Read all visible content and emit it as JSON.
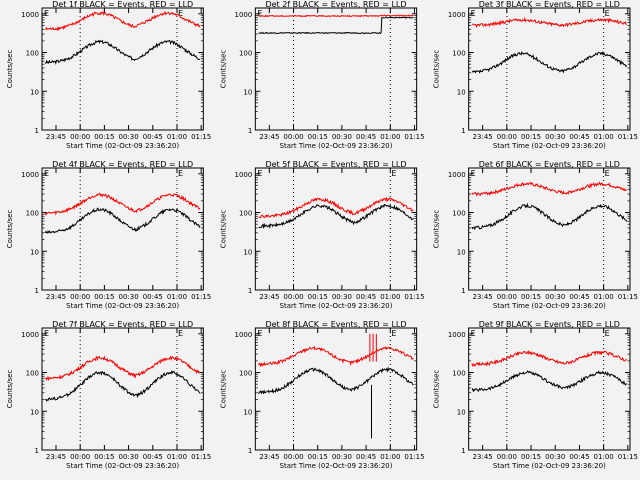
{
  "chart_data": [
    {
      "type": "line",
      "title": "Det 1f BLACK = Events, RED = LLD",
      "ylabel": "Counts/sec",
      "xlabel": "Start Time (02-Oct-09 23:36:20)",
      "x_ticks": [
        "23:45",
        "00:00",
        "00:15",
        "00:30",
        "00:45",
        "01:00",
        "01:15"
      ],
      "y_ticks": [
        "1",
        "10",
        "100",
        "1000"
      ],
      "markers": [
        "E",
        "E"
      ],
      "series": [
        {
          "color": "#000000",
          "shape": "hump2",
          "base": 55,
          "peak": 190,
          "peak_times": [
            36,
            78
          ]
        },
        {
          "color": "#ff0000",
          "shape": "hump2",
          "base": 400,
          "peak": 1050,
          "peak_times": [
            36,
            78
          ]
        }
      ]
    },
    {
      "type": "line",
      "title": "Det 2f BLACK = Events, RED = LLD",
      "ylabel": "Counts/sec",
      "xlabel": "Start Time (02-Oct-09 23:36:20)",
      "x_ticks": [
        "23:45",
        "00:00",
        "00:15",
        "00:30",
        "00:45",
        "01:00",
        "01:15"
      ],
      "y_ticks": [
        "1",
        "10",
        "100",
        "1000"
      ],
      "markers": [
        "E"
      ],
      "series": [
        {
          "color": "#000000",
          "shape": "flat_step",
          "base": 320,
          "step_value": 800
        },
        {
          "color": "#ff0000",
          "shape": "flat_step",
          "base": 880,
          "step_value": 900
        }
      ]
    },
    {
      "type": "line",
      "title": "Det 3f BLACK = Events, RED = LLD",
      "ylabel": "Counts/sec",
      "xlabel": "Start Time (02-Oct-09 23:36:20)",
      "x_ticks": [
        "23:45",
        "00:00",
        "00:15",
        "00:30",
        "00:45",
        "01:00",
        "01:15"
      ],
      "y_ticks": [
        "1",
        "10",
        "100",
        "1000"
      ],
      "markers": [
        "E",
        "E"
      ],
      "series": [
        {
          "color": "#000000",
          "shape": "hump2",
          "base": 30,
          "peak": 95,
          "peak_times": [
            33,
            82
          ]
        },
        {
          "color": "#ff0000",
          "shape": "hump2",
          "base": 500,
          "peak": 700,
          "peak_times": [
            33,
            82
          ]
        }
      ]
    },
    {
      "type": "line",
      "title": "Det 4f BLACK = Events, RED = LLD",
      "ylabel": "Counts/sec",
      "xlabel": "Start Time (02-Oct-09 23:36:20)",
      "x_ticks": [
        "23:45",
        "00:00",
        "00:15",
        "00:30",
        "00:45",
        "01:00",
        "01:15"
      ],
      "y_ticks": [
        "1",
        "10",
        "100",
        "1000"
      ],
      "markers": [
        "E",
        "E"
      ],
      "series": [
        {
          "color": "#000000",
          "shape": "hump2",
          "base": 30,
          "peak": 120,
          "peak_times": [
            36,
            80
          ]
        },
        {
          "color": "#ff0000",
          "shape": "hump2",
          "base": 95,
          "peak": 290,
          "peak_times": [
            36,
            80
          ]
        }
      ]
    },
    {
      "type": "line",
      "title": "Det 5f BLACK = Events, RED = LLD",
      "ylabel": "Counts/sec",
      "xlabel": "Start Time (02-Oct-09 23:36:20)",
      "x_ticks": [
        "23:45",
        "00:00",
        "00:15",
        "00:30",
        "00:45",
        "01:00",
        "01:15"
      ],
      "y_ticks": [
        "1",
        "10",
        "100",
        "1000"
      ],
      "markers": [
        "E",
        "E"
      ],
      "series": [
        {
          "color": "#000000",
          "shape": "hump2",
          "base": 45,
          "peak": 150,
          "peak_times": [
            40,
            82
          ]
        },
        {
          "color": "#ff0000",
          "shape": "hump2",
          "base": 80,
          "peak": 220,
          "peak_times": [
            40,
            82
          ]
        }
      ]
    },
    {
      "type": "line",
      "title": "Det 6f BLACK = Events, RED = LLD",
      "ylabel": "Counts/sec",
      "xlabel": "Start Time (02-Oct-09 23:36:20)",
      "x_ticks": [
        "23:45",
        "00:00",
        "00:15",
        "00:30",
        "00:45",
        "01:00",
        "01:15"
      ],
      "y_ticks": [
        "1",
        "10",
        "100",
        "1000"
      ],
      "markers": [
        "E",
        "E"
      ],
      "series": [
        {
          "color": "#000000",
          "shape": "hump2",
          "base": 40,
          "peak": 150,
          "peak_times": [
            36,
            82
          ]
        },
        {
          "color": "#ff0000",
          "shape": "hump2",
          "base": 300,
          "peak": 550,
          "peak_times": [
            36,
            82
          ]
        }
      ]
    },
    {
      "type": "line",
      "title": "Det 7f BLACK = Events, RED = LLD",
      "ylabel": "Counts/sec",
      "xlabel": "Start Time (02-Oct-09 23:36:20)",
      "x_ticks": [
        "23:45",
        "00:00",
        "00:15",
        "00:30",
        "00:45",
        "01:00",
        "01:15"
      ],
      "y_ticks": [
        "1",
        "10",
        "100",
        "1000"
      ],
      "markers": [
        "E",
        "E"
      ],
      "series": [
        {
          "color": "#000000",
          "shape": "hump2",
          "base": 20,
          "peak": 100,
          "peak_times": [
            36,
            80
          ]
        },
        {
          "color": "#ff0000",
          "shape": "hump2",
          "base": 70,
          "peak": 240,
          "peak_times": [
            36,
            80
          ]
        }
      ]
    },
    {
      "type": "line",
      "title": "Det 8f BLACK = Events, RED = LLD",
      "ylabel": "Counts/sec",
      "xlabel": "Start Time (02-Oct-09 23:36:20)",
      "x_ticks": [
        "23:45",
        "00:00",
        "00:15",
        "00:30",
        "00:45",
        "01:00",
        "01:15"
      ],
      "y_ticks": [
        "1",
        "10",
        "100",
        "1000"
      ],
      "markers": [
        "E",
        "E"
      ],
      "series": [
        {
          "color": "#000000",
          "shape": "hump2",
          "base": 30,
          "peak": 120,
          "peak_times": [
            36,
            82
          ],
          "dip_time": 72,
          "dip_value": 2
        },
        {
          "color": "#ff0000",
          "shape": "hump2",
          "base": 160,
          "peak": 430,
          "peak_times": [
            36,
            82
          ],
          "spike_times": [
            71,
            73,
            75
          ],
          "spike_value": 1000
        }
      ]
    },
    {
      "type": "line",
      "title": "Det 9f BLACK = Events, RED = LLD",
      "ylabel": "Counts/sec",
      "xlabel": "Start Time (02-Oct-09 23:36:20)",
      "x_ticks": [
        "23:45",
        "00:00",
        "00:15",
        "00:30",
        "00:45",
        "01:00",
        "01:15"
      ],
      "y_ticks": [
        "1",
        "10",
        "100",
        "1000"
      ],
      "markers": [
        "E",
        "E"
      ],
      "series": [
        {
          "color": "#000000",
          "shape": "hump2",
          "base": 35,
          "peak": 100,
          "peak_times": [
            36,
            82
          ]
        },
        {
          "color": "#ff0000",
          "shape": "hump2",
          "base": 160,
          "peak": 330,
          "peak_times": [
            36,
            82
          ]
        }
      ]
    }
  ]
}
